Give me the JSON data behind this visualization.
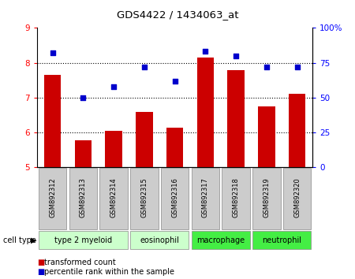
{
  "title": "GDS4422 / 1434063_at",
  "samples": [
    "GSM892312",
    "GSM892313",
    "GSM892314",
    "GSM892315",
    "GSM892316",
    "GSM892317",
    "GSM892318",
    "GSM892319",
    "GSM892320"
  ],
  "bar_values": [
    7.65,
    5.78,
    6.05,
    6.6,
    6.15,
    8.15,
    7.78,
    6.75,
    7.1
  ],
  "percentile_values": [
    82,
    50,
    58,
    72,
    62,
    83,
    80,
    72,
    72
  ],
  "bar_color": "#cc0000",
  "dot_color": "#0000cc",
  "ylim_left": [
    5,
    9
  ],
  "ylim_right": [
    0,
    100
  ],
  "yticks_left": [
    5,
    6,
    7,
    8,
    9
  ],
  "yticks_right": [
    0,
    25,
    50,
    75,
    100
  ],
  "ytick_labels_right": [
    "0",
    "25",
    "50",
    "75",
    "100%"
  ],
  "cell_types": [
    {
      "label": "type 2 myeloid",
      "start": 0,
      "end": 2,
      "color": "#ccffcc"
    },
    {
      "label": "eosinophil",
      "start": 3,
      "end": 4,
      "color": "#ccffcc"
    },
    {
      "label": "macrophage",
      "start": 5,
      "end": 6,
      "color": "#44ee44"
    },
    {
      "label": "neutrophil",
      "start": 7,
      "end": 8,
      "color": "#44ee44"
    }
  ],
  "legend_bar_label": "transformed count",
  "legend_dot_label": "percentile rank within the sample",
  "cell_type_label": "cell type",
  "sample_box_color": "#cccccc"
}
